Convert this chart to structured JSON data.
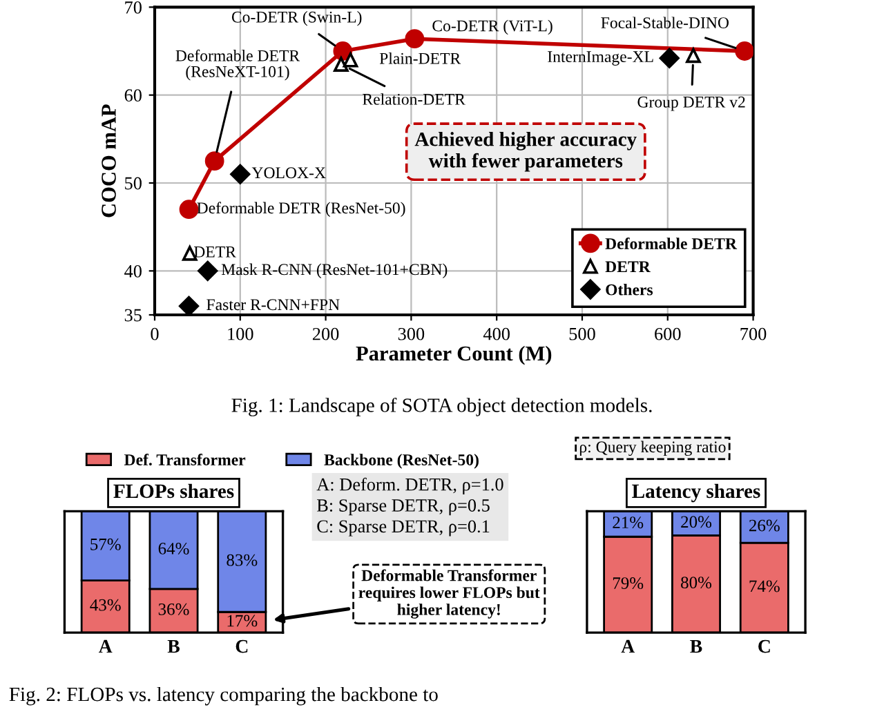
{
  "chart_data": [
    {
      "type": "scatter",
      "xlabel": "Parameter Count (M)",
      "ylabel": "COCO mAP",
      "xlim": [
        0,
        700
      ],
      "xticks": [
        0,
        100,
        200,
        300,
        400,
        500,
        600,
        700
      ],
      "ylim": [
        35,
        70
      ],
      "yticks": [
        35,
        40,
        50,
        60,
        70
      ],
      "grid": true,
      "legend": "bottom right",
      "series": [
        {
          "name": "Deformable DETR",
          "type": "line",
          "marker": "circle",
          "color": "#c00000",
          "x": [
            40,
            70,
            220,
            304,
            690
          ],
          "values": [
            47,
            52.5,
            65,
            66.4,
            65
          ]
        },
        {
          "name": "DETR",
          "marker": "triangle",
          "color": "#000000",
          "x": [
            41,
            218,
            229,
            630
          ],
          "values": [
            42,
            63.5,
            64,
            64.5
          ]
        },
        {
          "name": "Others",
          "marker": "diamond",
          "color": "#000000",
          "x": [
            100,
            602,
            62,
            40
          ],
          "values": [
            51,
            64.2,
            40,
            36
          ]
        }
      ],
      "annotations": [
        {
          "text": "Deformable DETR (ResNet-50)",
          "x": 40,
          "y": 47
        },
        {
          "text": "Deformable DETR\n(ResNeXT-101)",
          "x": 70,
          "y": 52.5
        },
        {
          "text": "Co-DETR (Swin-L)",
          "x": 220,
          "y": 65
        },
        {
          "text": "Co-DETR (ViT-L)",
          "x": 304,
          "y": 66.4
        },
        {
          "text": "Focal-Stable-DINO",
          "x": 690,
          "y": 65
        },
        {
          "text": "DETR",
          "x": 41,
          "y": 42
        },
        {
          "text": "Relation-DETR",
          "x": 218,
          "y": 63.5
        },
        {
          "text": "Plain-DETR",
          "x": 229,
          "y": 64
        },
        {
          "text": "Group DETR v2",
          "x": 630,
          "y": 64.5
        },
        {
          "text": "YOLOX-X",
          "x": 100,
          "y": 51
        },
        {
          "text": "InternImage-XL",
          "x": 602,
          "y": 64.2
        },
        {
          "text": "Mask R-CNN (ResNet-101+CBN)",
          "x": 62,
          "y": 40
        },
        {
          "text": "Faster R-CNN+FPN",
          "x": 40,
          "y": 36
        },
        "Achieved higher accuracy\nwith fewer parameters",
        "Fig. 1: Landscape of SOTA object detection models."
      ]
    },
    {
      "type": "bar",
      "stacked": true,
      "title": "FLOPs shares",
      "categories": [
        "A",
        "B",
        "C"
      ],
      "tick_labels": "x",
      "legend": "top",
      "series": [
        {
          "name": "Def. Transformer",
          "color": "#ea6b6b",
          "values": [
            43,
            36,
            17
          ],
          "value_labels": [
            "43%",
            "36%",
            "17%"
          ]
        },
        {
          "name": "Backbone (ResNet-50)",
          "color": "#6f86e8",
          "values": [
            57,
            64,
            83
          ],
          "value_labels": [
            "57%",
            "64%",
            "83%"
          ]
        }
      ],
      "annotations": [
        "A: Deform. DETR, ρ=1.0\nB: Sparse DETR, ρ=0.5\nC: Sparse DETR, ρ=0.1",
        "ρ: Query keeping ratio",
        "Deformable Transformer\nrequires lower FLOPs but\nhigher latency!",
        "Fig. 2: FLOPs vs. latency comparing the backbone to"
      ]
    },
    {
      "type": "bar",
      "stacked": true,
      "title": "Latency shares",
      "categories": [
        "A",
        "B",
        "C"
      ],
      "tick_labels": "x",
      "series": [
        {
          "color": "#ea6b6b",
          "values": [
            79,
            80,
            74
          ],
          "value_labels": [
            "79%",
            "80%",
            "74%"
          ]
        },
        {
          "color": "#6f86e8",
          "values": [
            21,
            20,
            26
          ],
          "value_labels": [
            "21%",
            "20%",
            "26%"
          ]
        }
      ]
    }
  ]
}
